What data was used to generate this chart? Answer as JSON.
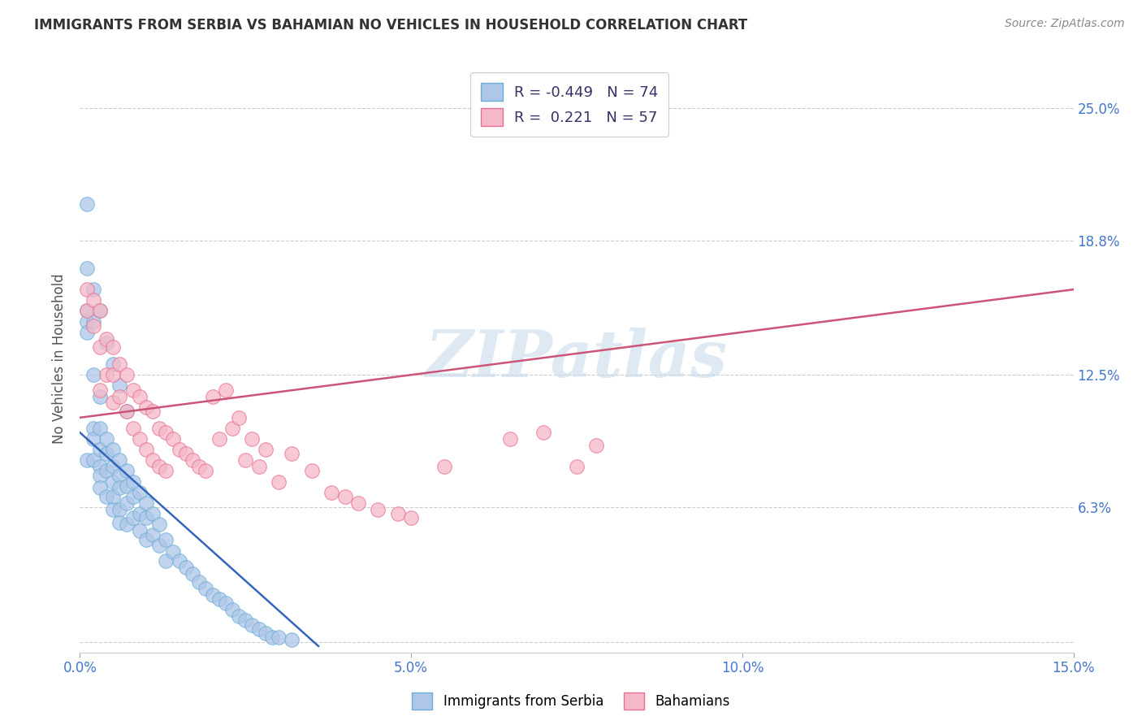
{
  "title": "IMMIGRANTS FROM SERBIA VS BAHAMIAN NO VEHICLES IN HOUSEHOLD CORRELATION CHART",
  "source": "Source: ZipAtlas.com",
  "ylabel": "No Vehicles in Household",
  "xlim": [
    0.0,
    0.15
  ],
  "ylim": [
    -0.005,
    0.27
  ],
  "serbia_color": "#aec6e8",
  "serbia_edge": "#6aaed6",
  "bahamian_color": "#f4b8c8",
  "bahamian_edge": "#e87090",
  "serbia_R": -0.449,
  "serbia_N": 74,
  "bahamian_R": 0.221,
  "bahamian_N": 57,
  "watermark": "ZIPatlas",
  "line_serbia_color": "#3366bb",
  "line_bahamian_color": "#cc5577",
  "serbia_line_x0": 0.0,
  "serbia_line_y0": 0.098,
  "serbia_line_x1": 0.036,
  "serbia_line_y1": -0.002,
  "bahamian_line_x0": 0.0,
  "bahamian_line_y0": 0.105,
  "bahamian_line_x1": 0.15,
  "bahamian_line_y1": 0.165,
  "serbia_pts_x": [
    0.001,
    0.001,
    0.001,
    0.001,
    0.001,
    0.002,
    0.002,
    0.002,
    0.002,
    0.002,
    0.003,
    0.003,
    0.003,
    0.003,
    0.003,
    0.003,
    0.004,
    0.004,
    0.004,
    0.004,
    0.005,
    0.005,
    0.005,
    0.005,
    0.005,
    0.006,
    0.006,
    0.006,
    0.006,
    0.006,
    0.007,
    0.007,
    0.007,
    0.007,
    0.008,
    0.008,
    0.008,
    0.009,
    0.009,
    0.009,
    0.01,
    0.01,
    0.01,
    0.011,
    0.011,
    0.012,
    0.012,
    0.013,
    0.013,
    0.014,
    0.015,
    0.016,
    0.017,
    0.018,
    0.019,
    0.02,
    0.021,
    0.022,
    0.023,
    0.024,
    0.025,
    0.026,
    0.027,
    0.028,
    0.029,
    0.03,
    0.001,
    0.002,
    0.003,
    0.004,
    0.005,
    0.006,
    0.007,
    0.032
  ],
  "serbia_pts_y": [
    0.205,
    0.155,
    0.15,
    0.145,
    0.085,
    0.15,
    0.125,
    0.1,
    0.095,
    0.085,
    0.115,
    0.1,
    0.09,
    0.082,
    0.078,
    0.072,
    0.095,
    0.088,
    0.08,
    0.068,
    0.09,
    0.082,
    0.075,
    0.068,
    0.062,
    0.085,
    0.078,
    0.072,
    0.062,
    0.056,
    0.08,
    0.073,
    0.065,
    0.055,
    0.075,
    0.068,
    0.058,
    0.07,
    0.06,
    0.052,
    0.065,
    0.058,
    0.048,
    0.06,
    0.05,
    0.055,
    0.045,
    0.048,
    0.038,
    0.042,
    0.038,
    0.035,
    0.032,
    0.028,
    0.025,
    0.022,
    0.02,
    0.018,
    0.015,
    0.012,
    0.01,
    0.008,
    0.006,
    0.004,
    0.002,
    0.002,
    0.175,
    0.165,
    0.155,
    0.14,
    0.13,
    0.12,
    0.108,
    0.001
  ],
  "bahamian_pts_x": [
    0.001,
    0.001,
    0.002,
    0.002,
    0.003,
    0.003,
    0.003,
    0.004,
    0.004,
    0.005,
    0.005,
    0.005,
    0.006,
    0.006,
    0.007,
    0.007,
    0.008,
    0.008,
    0.009,
    0.009,
    0.01,
    0.01,
    0.011,
    0.011,
    0.012,
    0.012,
    0.013,
    0.013,
    0.014,
    0.015,
    0.016,
    0.017,
    0.018,
    0.019,
    0.02,
    0.021,
    0.022,
    0.023,
    0.024,
    0.025,
    0.026,
    0.027,
    0.028,
    0.03,
    0.032,
    0.035,
    0.038,
    0.04,
    0.042,
    0.045,
    0.048,
    0.05,
    0.055,
    0.065,
    0.07,
    0.075,
    0.078
  ],
  "bahamian_pts_y": [
    0.165,
    0.155,
    0.16,
    0.148,
    0.155,
    0.138,
    0.118,
    0.142,
    0.125,
    0.138,
    0.125,
    0.112,
    0.13,
    0.115,
    0.125,
    0.108,
    0.118,
    0.1,
    0.115,
    0.095,
    0.11,
    0.09,
    0.108,
    0.085,
    0.1,
    0.082,
    0.098,
    0.08,
    0.095,
    0.09,
    0.088,
    0.085,
    0.082,
    0.08,
    0.115,
    0.095,
    0.118,
    0.1,
    0.105,
    0.085,
    0.095,
    0.082,
    0.09,
    0.075,
    0.088,
    0.08,
    0.07,
    0.068,
    0.065,
    0.062,
    0.06,
    0.058,
    0.082,
    0.095,
    0.098,
    0.082,
    0.092
  ],
  "xtick_positions": [
    0.0,
    0.05,
    0.1,
    0.15
  ],
  "xtick_labels": [
    "0.0%",
    "5.0%",
    "10.0%",
    "15.0%"
  ],
  "ytick_positions": [
    0.0,
    0.063,
    0.125,
    0.188,
    0.25
  ],
  "ytick_labels": [
    "",
    "6.3%",
    "12.5%",
    "18.8%",
    "25.0%"
  ],
  "grid_color": "#cccccc",
  "tick_label_color": "#4477cc",
  "ylabel_color": "#555555",
  "title_fontsize": 12,
  "axis_fontsize": 12,
  "legend_fontsize": 13
}
